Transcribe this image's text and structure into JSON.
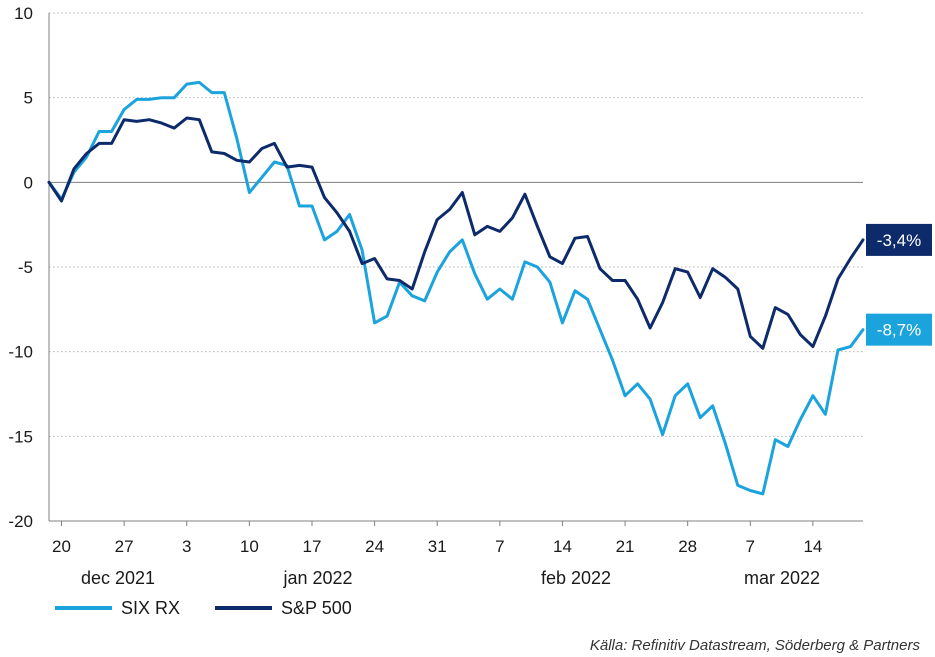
{
  "chart_data": {
    "type": "line",
    "y_ticks": [
      10,
      5,
      0,
      -5,
      -10,
      -15,
      -20
    ],
    "ylim": [
      -20,
      10
    ],
    "x_tick_labels": [
      "20",
      "27",
      "3",
      "10",
      "17",
      "24",
      "31",
      "7",
      "14",
      "21",
      "28",
      "7",
      "14"
    ],
    "month_labels": [
      "dec 2021",
      "jan 2022",
      "feb 2022",
      "mar 2022"
    ],
    "grid": "horizontal dotted",
    "legend_position": "bottom-left",
    "series": [
      {
        "name": "SIX RX",
        "color": "#1ba3dd",
        "end_label": "-8,7%",
        "values": [
          0,
          -1.0,
          0.6,
          1.5,
          3.0,
          3.0,
          4.3,
          4.9,
          4.9,
          5.0,
          5.0,
          5.8,
          5.9,
          5.3,
          5.3,
          2.6,
          -0.6,
          0.3,
          1.2,
          1.0,
          -1.4,
          -1.4,
          -3.4,
          -2.9,
          -1.9,
          -4.0,
          -8.3,
          -7.9,
          -5.9,
          -6.7,
          -7.0,
          -5.3,
          -4.1,
          -3.4,
          -5.4,
          -6.9,
          -6.3,
          -6.9,
          -4.7,
          -5.0,
          -5.9,
          -8.3,
          -6.4,
          -6.9,
          -8.7,
          -10.5,
          -12.6,
          -11.9,
          -12.8,
          -14.9,
          -12.6,
          -11.9,
          -13.9,
          -13.2,
          -15.4,
          -17.9,
          -18.2,
          -18.4,
          -15.2,
          -15.6,
          -14.0,
          -12.6,
          -13.7,
          -9.9,
          -9.7,
          -8.7
        ]
      },
      {
        "name": "S&P 500",
        "color": "#0d2a6b",
        "end_label": "-3,4%",
        "values": [
          0,
          -1.1,
          0.8,
          1.7,
          2.3,
          2.3,
          3.7,
          3.6,
          3.7,
          3.5,
          3.2,
          3.8,
          3.7,
          1.8,
          1.7,
          1.3,
          1.2,
          2.0,
          2.3,
          0.9,
          1.0,
          0.9,
          -0.9,
          -1.8,
          -2.9,
          -4.8,
          -4.5,
          -5.7,
          -5.8,
          -6.3,
          -4.1,
          -2.2,
          -1.6,
          -0.6,
          -3.1,
          -2.6,
          -2.9,
          -2.1,
          -0.7,
          -2.6,
          -4.4,
          -4.8,
          -3.3,
          -3.2,
          -5.1,
          -5.8,
          -5.8,
          -6.9,
          -8.6,
          -7.1,
          -5.1,
          -5.3,
          -6.8,
          -5.1,
          -5.6,
          -6.3,
          -9.1,
          -9.8,
          -7.4,
          -7.8,
          -9.0,
          -9.7,
          -7.9,
          -5.7,
          -4.5,
          -3.4
        ]
      }
    ]
  },
  "source": "Källa: Refinitiv Datastream, Söderberg & Partners"
}
